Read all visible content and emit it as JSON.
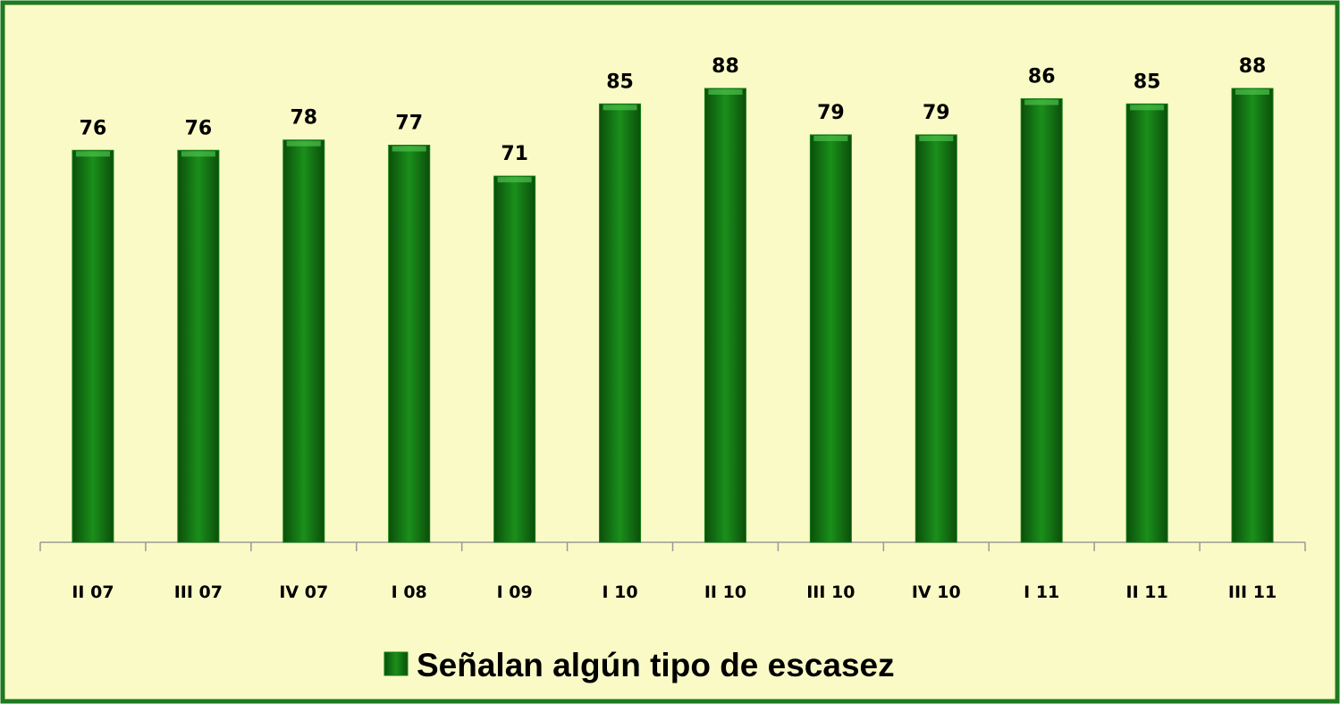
{
  "chart_data": {
    "type": "bar",
    "categories": [
      "II 07",
      "III 07",
      "IV 07",
      "I 08",
      "I 09",
      "I 10",
      "II 10",
      "III 10",
      "IV 10",
      "I 11",
      "II 11",
      "III 11"
    ],
    "series": [
      {
        "name": "Señalan algún tipo de escasez",
        "color": "#137f13",
        "values": [
          76,
          76,
          78,
          77,
          71,
          85,
          88,
          79,
          79,
          86,
          85,
          88
        ]
      }
    ],
    "legend": "bottom"
  }
}
